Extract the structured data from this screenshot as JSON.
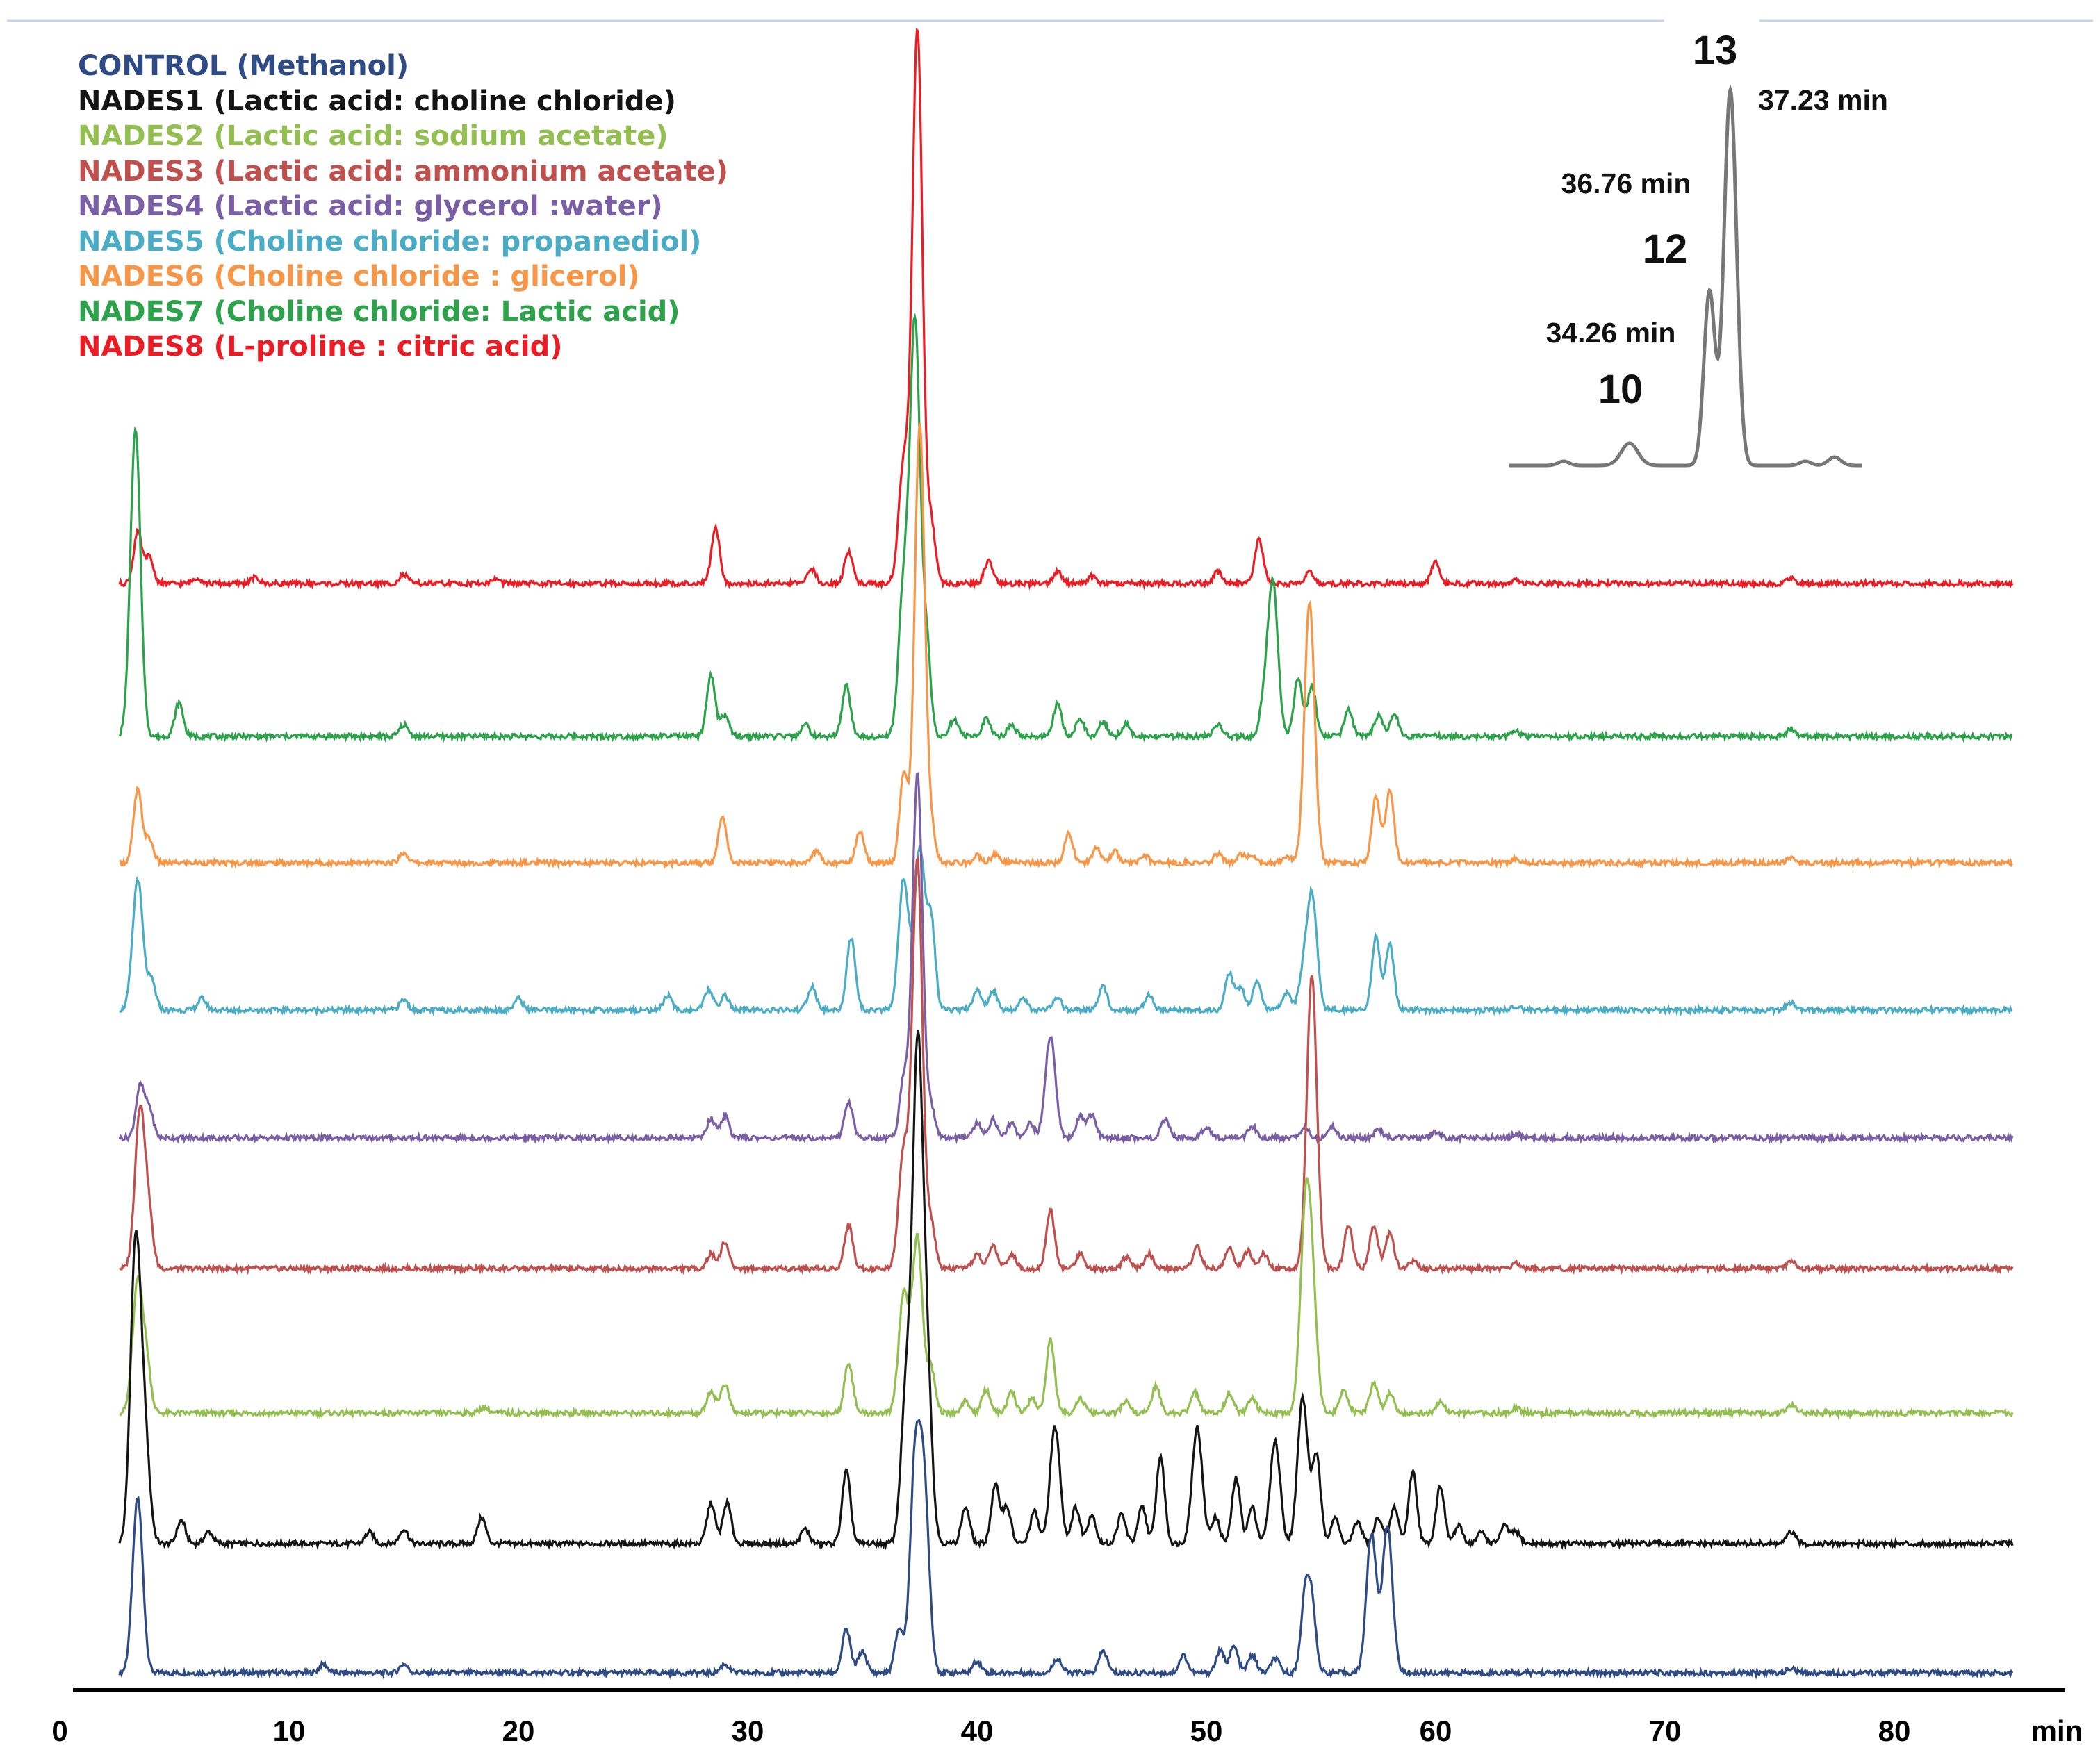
{
  "chart_data": {
    "type": "line",
    "title": "",
    "xlabel": "min",
    "ylabel": "",
    "xlim": [
      0,
      85
    ],
    "x_ticks": [
      {
        "value": 0,
        "label": "0"
      },
      {
        "value": 10,
        "label": "10"
      },
      {
        "value": 20,
        "label": "20"
      },
      {
        "value": 30,
        "label": "30"
      },
      {
        "value": 40,
        "label": "40"
      },
      {
        "value": 50,
        "label": "50"
      },
      {
        "value": 60,
        "label": "60"
      },
      {
        "value": 70,
        "label": "70"
      },
      {
        "value": 80,
        "label": "80"
      }
    ],
    "x_unit_label": "min",
    "grid": false,
    "legend_position": "top-left",
    "series": [
      {
        "name": "CONTROL (Methanol)",
        "color": "#2E4B86",
        "stack": 0,
        "peaks": [
          [
            3.4,
            12
          ],
          [
            11.5,
            0.6
          ],
          [
            15,
            0.6
          ],
          [
            29,
            0.6
          ],
          [
            34.3,
            3
          ],
          [
            35,
            1.5
          ],
          [
            36.6,
            3
          ],
          [
            37.3,
            14
          ],
          [
            37.7,
            12
          ],
          [
            40,
            0.8
          ],
          [
            43.5,
            1
          ],
          [
            45.5,
            1.5
          ],
          [
            49,
            1.2
          ],
          [
            50.6,
            1.5
          ],
          [
            51.2,
            1.8
          ],
          [
            52,
            1.2
          ],
          [
            53,
            1
          ],
          [
            54.3,
            5
          ],
          [
            54.6,
            4.5
          ],
          [
            57.2,
            9.5
          ],
          [
            57.9,
            10
          ],
          [
            75.5,
            0.3
          ]
        ]
      },
      {
        "name": "NADES1 (Lactic acid: choline chloride)",
        "color": "#141414",
        "stack": 1,
        "peaks": [
          [
            3.3,
            20
          ],
          [
            3.7,
            7
          ],
          [
            5.3,
            1.6
          ],
          [
            6.5,
            0.8
          ],
          [
            13.5,
            0.8
          ],
          [
            15,
            1
          ],
          [
            18.4,
            1.8
          ],
          [
            28.4,
            2.8
          ],
          [
            29.1,
            2.8
          ],
          [
            32.5,
            1
          ],
          [
            34.3,
            5
          ],
          [
            36.9,
            10
          ],
          [
            37.4,
            32
          ],
          [
            37.8,
            12
          ],
          [
            39.5,
            2.5
          ],
          [
            40.8,
            4
          ],
          [
            41.3,
            2.5
          ],
          [
            42.5,
            2.2
          ],
          [
            43.4,
            8
          ],
          [
            44.3,
            2.5
          ],
          [
            45,
            2
          ],
          [
            46.3,
            2
          ],
          [
            47.2,
            2.5
          ],
          [
            48,
            6
          ],
          [
            49.6,
            8
          ],
          [
            50.4,
            1.8
          ],
          [
            51.3,
            4.5
          ],
          [
            52,
            2.5
          ],
          [
            53,
            7
          ],
          [
            54.2,
            10
          ],
          [
            54.8,
            6
          ],
          [
            55.6,
            1.8
          ],
          [
            56.6,
            1.5
          ],
          [
            57.5,
            1.8
          ],
          [
            58.2,
            2.5
          ],
          [
            59,
            5
          ],
          [
            60.2,
            4
          ],
          [
            61,
            1.2
          ],
          [
            62,
            0.8
          ],
          [
            63,
            1.2
          ],
          [
            63.5,
            0.8
          ],
          [
            75.5,
            0.8
          ]
        ]
      },
      {
        "name": "NADES2 (Lactic acid: sodium acetate)",
        "color": "#93BF50",
        "stack": 2,
        "peaks": [
          [
            3.4,
            9
          ],
          [
            3.8,
            3
          ],
          [
            18.5,
            0.4
          ],
          [
            28.4,
            1.5
          ],
          [
            29,
            2
          ],
          [
            34.4,
            3.5
          ],
          [
            36.8,
            8
          ],
          [
            37.4,
            12
          ],
          [
            38,
            3
          ],
          [
            39.5,
            0.8
          ],
          [
            40.4,
            1.6
          ],
          [
            41.5,
            1.4
          ],
          [
            42.4,
            1
          ],
          [
            43.2,
            5
          ],
          [
            44.5,
            1
          ],
          [
            46.5,
            0.8
          ],
          [
            47.8,
            1.8
          ],
          [
            49.5,
            1.4
          ],
          [
            51,
            1.4
          ],
          [
            52,
            1
          ],
          [
            54.3,
            12
          ],
          [
            54.6,
            8
          ],
          [
            56,
            1.6
          ],
          [
            57.3,
            2
          ],
          [
            58,
            1.4
          ],
          [
            60.2,
            0.8
          ],
          [
            63.5,
            0.4
          ],
          [
            75.5,
            0.6
          ]
        ]
      },
      {
        "name": "NADES3 (Lactic acid: ammonium acetate)",
        "color": "#C0504D",
        "stack": 3,
        "peaks": [
          [
            3.5,
            11
          ],
          [
            3.9,
            3
          ],
          [
            28.4,
            1
          ],
          [
            29,
            1.8
          ],
          [
            34.4,
            3
          ],
          [
            36.8,
            8
          ],
          [
            37.4,
            28
          ],
          [
            38,
            3
          ],
          [
            40,
            1
          ],
          [
            40.7,
            1.6
          ],
          [
            41.5,
            1
          ],
          [
            43.2,
            4
          ],
          [
            44.5,
            1
          ],
          [
            46.5,
            0.8
          ],
          [
            47.5,
            1
          ],
          [
            49.6,
            1.5
          ],
          [
            51,
            1.4
          ],
          [
            51.8,
            1.2
          ],
          [
            52.5,
            1
          ],
          [
            54.6,
            20
          ],
          [
            56.2,
            3
          ],
          [
            57.3,
            3
          ],
          [
            58,
            2.5
          ],
          [
            59,
            0.5
          ],
          [
            63.5,
            0.4
          ],
          [
            75.5,
            0.5
          ]
        ]
      },
      {
        "name": "NADES4 (Lactic acid: glycerol :water)",
        "color": "#7B5FA6",
        "stack": 4,
        "peaks": [
          [
            3.5,
            3.5
          ],
          [
            3.9,
            2
          ],
          [
            28.4,
            1.3
          ],
          [
            29,
            1.5
          ],
          [
            34.4,
            2.5
          ],
          [
            36.8,
            4
          ],
          [
            37.4,
            25
          ],
          [
            38,
            2
          ],
          [
            40,
            1
          ],
          [
            40.7,
            1.3
          ],
          [
            41.5,
            1
          ],
          [
            42.3,
            1
          ],
          [
            43.2,
            7
          ],
          [
            44.5,
            1.5
          ],
          [
            45,
            1.6
          ],
          [
            48.2,
            1.2
          ],
          [
            50,
            0.8
          ],
          [
            52,
            0.8
          ],
          [
            54.3,
            0.8
          ],
          [
            55.5,
            0.8
          ],
          [
            57.5,
            0.6
          ],
          [
            60,
            0.4
          ],
          [
            63.5,
            0.3
          ]
        ]
      },
      {
        "name": "NADES5  (Choline chloride: propanediol)",
        "color": "#4BACC6",
        "stack": 5,
        "peaks": [
          [
            3.4,
            9
          ],
          [
            4,
            2
          ],
          [
            6.2,
            0.8
          ],
          [
            15,
            0.7
          ],
          [
            20,
            0.8
          ],
          [
            26.5,
            1
          ],
          [
            28.3,
            1.4
          ],
          [
            29,
            1
          ],
          [
            32.8,
            1.6
          ],
          [
            34.5,
            5
          ],
          [
            36.8,
            9
          ],
          [
            37.5,
            11
          ],
          [
            38,
            6
          ],
          [
            40,
            1.4
          ],
          [
            40.7,
            1.3
          ],
          [
            42,
            0.8
          ],
          [
            43.5,
            0.8
          ],
          [
            45.5,
            1.6
          ],
          [
            47.5,
            1
          ],
          [
            51,
            2.5
          ],
          [
            51.5,
            1.5
          ],
          [
            52.2,
            2
          ],
          [
            53.5,
            1.2
          ],
          [
            54.2,
            2
          ],
          [
            54.6,
            8
          ],
          [
            57.4,
            5
          ],
          [
            58,
            4.5
          ],
          [
            63.5,
            0.3
          ],
          [
            75.5,
            0.5
          ]
        ]
      },
      {
        "name": "NADES6 (Choline chloride : glicerol)",
        "color": "#F79646",
        "stack": 6,
        "peaks": [
          [
            3.4,
            5
          ],
          [
            3.9,
            1.6
          ],
          [
            15,
            0.7
          ],
          [
            28.9,
            3.2
          ],
          [
            33,
            0.8
          ],
          [
            34.9,
            2.2
          ],
          [
            36.8,
            6
          ],
          [
            37.5,
            30
          ],
          [
            38,
            2
          ],
          [
            40,
            0.5
          ],
          [
            40.8,
            0.6
          ],
          [
            44,
            2
          ],
          [
            45.2,
            1
          ],
          [
            46,
            0.8
          ],
          [
            47.3,
            0.5
          ],
          [
            50.5,
            0.6
          ],
          [
            51.5,
            0.6
          ],
          [
            52,
            0.6
          ],
          [
            53.5,
            0.5
          ],
          [
            54.5,
            18
          ],
          [
            57.4,
            4.5
          ],
          [
            58,
            5
          ],
          [
            63.5,
            0.3
          ],
          [
            75.5,
            0.3
          ]
        ]
      },
      {
        "name": "NADES7 (Choline chloride: Lactic acid)",
        "color": "#2CA24A",
        "stack": 7,
        "peaks": [
          [
            3.3,
            21
          ],
          [
            5.2,
            2.3
          ],
          [
            15,
            0.8
          ],
          [
            28.4,
            4.2
          ],
          [
            29,
            1.5
          ],
          [
            32.5,
            0.8
          ],
          [
            34.3,
            3.5
          ],
          [
            36.8,
            10
          ],
          [
            37.3,
            28
          ],
          [
            37.8,
            6
          ],
          [
            39,
            1.2
          ],
          [
            40.4,
            1.2
          ],
          [
            41.5,
            0.8
          ],
          [
            43.5,
            2.2
          ],
          [
            44.5,
            1.2
          ],
          [
            45.5,
            1
          ],
          [
            46.5,
            0.8
          ],
          [
            50.5,
            0.8
          ],
          [
            52.5,
            2
          ],
          [
            52.9,
            10.5
          ],
          [
            54,
            4
          ],
          [
            54.6,
            3.5
          ],
          [
            56.2,
            1.8
          ],
          [
            57.5,
            1.4
          ],
          [
            58.2,
            1.5
          ],
          [
            63.5,
            0.3
          ],
          [
            75.5,
            0.5
          ]
        ]
      },
      {
        "name": "NADES8 (L-proline : citric acid)",
        "color": "#EC1C24",
        "stack": 8,
        "peaks": [
          [
            3.4,
            3.5
          ],
          [
            3.9,
            1.8
          ],
          [
            6,
            0.4
          ],
          [
            8.5,
            0.4
          ],
          [
            15,
            0.6
          ],
          [
            19,
            0.3
          ],
          [
            28.6,
            3.8
          ],
          [
            32.8,
            1
          ],
          [
            34.4,
            2.2
          ],
          [
            36.8,
            8
          ],
          [
            37.4,
            38
          ],
          [
            38,
            4
          ],
          [
            40.5,
            1.6
          ],
          [
            43.5,
            0.8
          ],
          [
            45,
            0.5
          ],
          [
            50.5,
            0.8
          ],
          [
            52.3,
            3
          ],
          [
            54.5,
            0.8
          ],
          [
            60,
            1.5
          ],
          [
            63.5,
            0.3
          ],
          [
            75.5,
            0.3
          ]
        ]
      }
    ],
    "inset": {
      "type": "line",
      "color": "#707070",
      "peaks": [
        {
          "label": "10",
          "time": "34.26 min"
        },
        {
          "label": "12",
          "time": "36.76 min"
        },
        {
          "label": "13",
          "time": "37.23 min"
        }
      ]
    }
  }
}
